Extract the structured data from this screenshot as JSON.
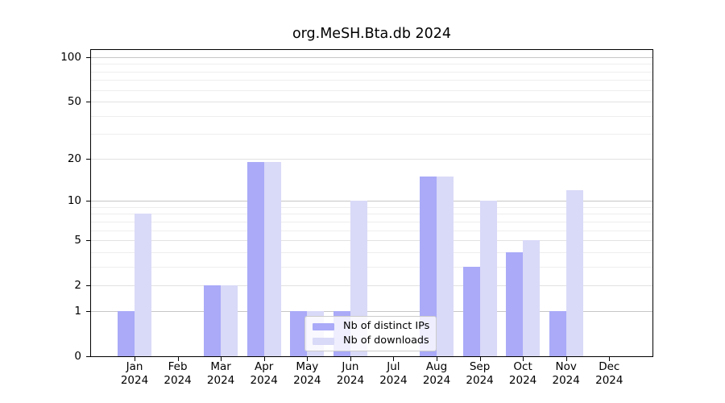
{
  "title": "org.MeSH.Bta.db 2024",
  "legend": {
    "items": [
      {
        "label": "Nb of distinct IPs",
        "color": "#aaaaf8"
      },
      {
        "label": "Nb of downloads",
        "color": "#d9d9f8"
      }
    ],
    "position": "lower center"
  },
  "colors": {
    "bar_distinct_ips": "#aaaaf8",
    "bar_downloads": "#d9d9f8",
    "grid_decade": "#c6c6c6",
    "grid_labeled": "#e2e2e2",
    "grid_minor": "#eeeeee",
    "spine": "#000000",
    "legend_border": "#cccccc",
    "background": "#ffffff"
  },
  "chart_data": {
    "type": "bar",
    "title": "org.MeSH.Bta.db 2024",
    "categories": [
      "Jan 2024",
      "Feb 2024",
      "Mar 2024",
      "Apr 2024",
      "May 2024",
      "Jun 2024",
      "Jul 2024",
      "Aug 2024",
      "Sep 2024",
      "Oct 2024",
      "Nov 2024",
      "Dec 2024"
    ],
    "series": [
      {
        "name": "Nb of distinct IPs",
        "color": "#aaaaf8",
        "values": [
          1,
          0,
          2,
          19,
          1,
          1,
          0,
          15,
          3,
          4,
          1,
          0
        ]
      },
      {
        "name": "Nb of downloads",
        "color": "#d9d9f8",
        "values": [
          8,
          0,
          2,
          19,
          1,
          10,
          0,
          15,
          10,
          5,
          12,
          0
        ]
      }
    ],
    "yscale": "log1p",
    "y_ticks": [
      0,
      1,
      2,
      5,
      10,
      20,
      50,
      100
    ],
    "y_minor_gridlines": [
      3,
      4,
      6,
      7,
      8,
      9,
      30,
      40,
      60,
      70,
      80,
      90
    ],
    "ylim": [
      0,
      112
    ],
    "grid": "horizontal",
    "legend_position": "lower center"
  }
}
